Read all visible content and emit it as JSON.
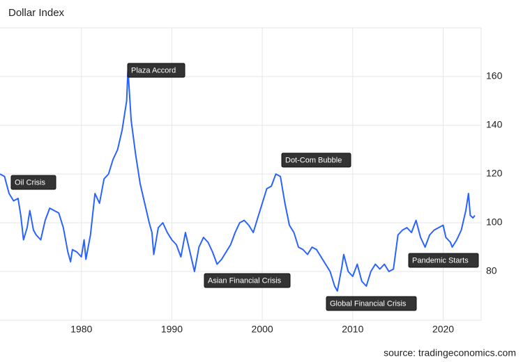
{
  "chart_data": {
    "type": "line",
    "title": "Dollar Index",
    "source": "source: tradingeconomics.com",
    "x": [
      1971.0,
      1971.5,
      1972,
      1972.5,
      1973,
      1973.3,
      1973.6,
      1974,
      1974.3,
      1974.7,
      1975,
      1975.5,
      1976,
      1976.5,
      1977,
      1977.5,
      1978,
      1978.5,
      1978.8,
      1979,
      1979.5,
      1980,
      1980.3,
      1980.5,
      1981,
      1981.5,
      1982,
      1982.5,
      1983,
      1983.5,
      1984,
      1984.5,
      1985,
      1985.15,
      1985.5,
      1986,
      1986.5,
      1987,
      1987.5,
      1987.8,
      1988,
      1988.5,
      1989,
      1989.5,
      1990,
      1990.5,
      1991,
      1991.5,
      1992,
      1992.5,
      1993,
      1993.5,
      1994,
      1994.5,
      1995,
      1995.5,
      1996,
      1996.5,
      1997,
      1997.5,
      1998,
      1998.5,
      1999,
      1999.5,
      2000,
      2000.5,
      2001,
      2001.5,
      2002,
      2002.5,
      2003,
      2003.5,
      2004,
      2004.5,
      2005,
      2005.5,
      2006,
      2006.5,
      2007,
      2007.5,
      2008,
      2008.3,
      2008.8,
      2009,
      2009.5,
      2010,
      2010.5,
      2011,
      2011.5,
      2012,
      2012.5,
      2013,
      2013.5,
      2014,
      2014.5,
      2015,
      2015.5,
      2016,
      2016.5,
      2017,
      2017.5,
      2018,
      2018.5,
      2019,
      2019.5,
      2020,
      2020.3,
      2020.8,
      2021,
      2021.5,
      2022,
      2022.5,
      2022.8,
      2023,
      2023.3,
      2023.5
    ],
    "series": [
      {
        "name": "Dollar Index",
        "color": "#2962ff",
        "values": [
          120,
          119,
          112,
          109,
          110,
          103,
          93,
          98,
          105,
          97,
          95,
          93,
          101,
          106,
          105,
          104,
          98,
          88,
          84,
          89,
          88,
          86,
          93,
          85,
          95,
          112,
          108,
          118,
          120,
          126,
          130,
          138,
          150,
          163,
          142,
          128,
          116,
          108,
          100,
          96,
          87,
          98,
          100,
          96,
          93,
          91,
          86,
          96,
          88,
          80,
          90,
          94,
          92,
          88,
          83,
          85,
          88,
          91,
          96,
          100,
          101,
          99,
          96,
          102,
          108,
          114,
          115,
          120,
          119,
          108,
          99,
          96,
          90,
          89,
          87,
          90,
          89,
          86,
          83,
          80,
          74,
          72,
          82,
          87,
          80,
          78,
          83,
          76,
          74,
          80,
          83,
          81,
          83,
          80,
          81,
          95,
          97,
          98,
          96,
          101,
          94,
          90,
          95,
          97,
          98,
          99,
          94,
          92,
          90,
          93,
          97,
          105,
          112,
          103,
          102,
          103
        ]
      }
    ],
    "annotations": [
      "Oil Crisis",
      "Plaza Accord",
      "Dot-Com Bubble",
      "Asian Financial Crisis",
      "Global Financial Crisis",
      "Pandemic Starts"
    ],
    "xlim": [
      1971,
      2024.2
    ],
    "xticks": [
      1980,
      1990,
      2000,
      2010,
      2020
    ],
    "ylim": [
      60,
      180
    ],
    "yticks": [
      80,
      100,
      120,
      140,
      160
    ],
    "grid": true
  }
}
